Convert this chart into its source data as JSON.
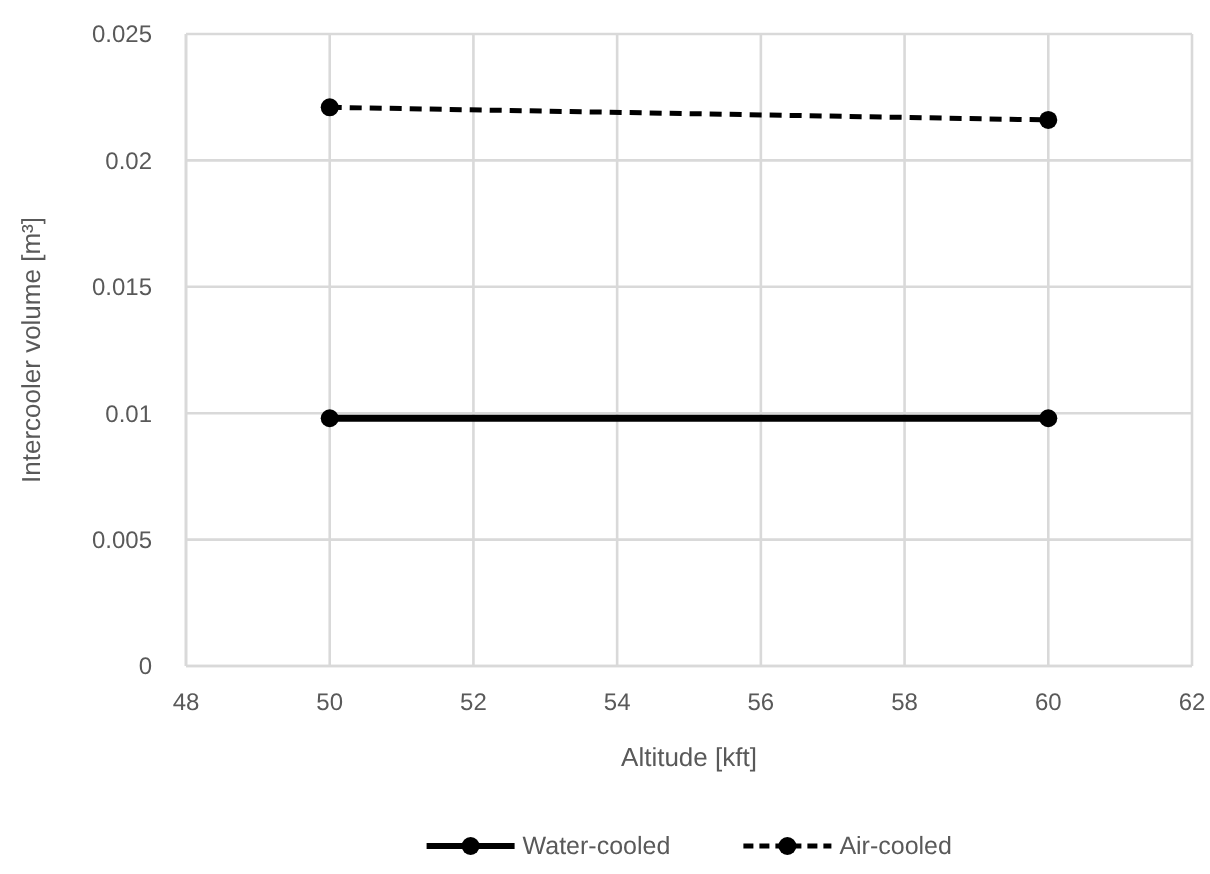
{
  "chart_data": {
    "type": "line",
    "xlabel": "Altitude [kft]",
    "ylabel": "Intercooler volume [m³]",
    "x": [
      50,
      60
    ],
    "series": [
      {
        "name": "Water-cooled",
        "color": "#000000",
        "values": [
          0.0098,
          0.0098
        ],
        "line_style": "solid"
      },
      {
        "name": "Air-cooled",
        "color": "#000000",
        "values": [
          0.0221,
          0.0216
        ],
        "line_style": "dashed"
      }
    ],
    "xlim": [
      48,
      62
    ],
    "xticks": [
      48,
      50,
      52,
      54,
      56,
      58,
      60,
      62
    ],
    "ylim": [
      0,
      0.025
    ],
    "yticks": [
      0,
      0.005,
      0.01,
      0.015,
      0.02,
      0.025
    ],
    "grid": true,
    "legend": "bottom",
    "marker": "circle"
  }
}
